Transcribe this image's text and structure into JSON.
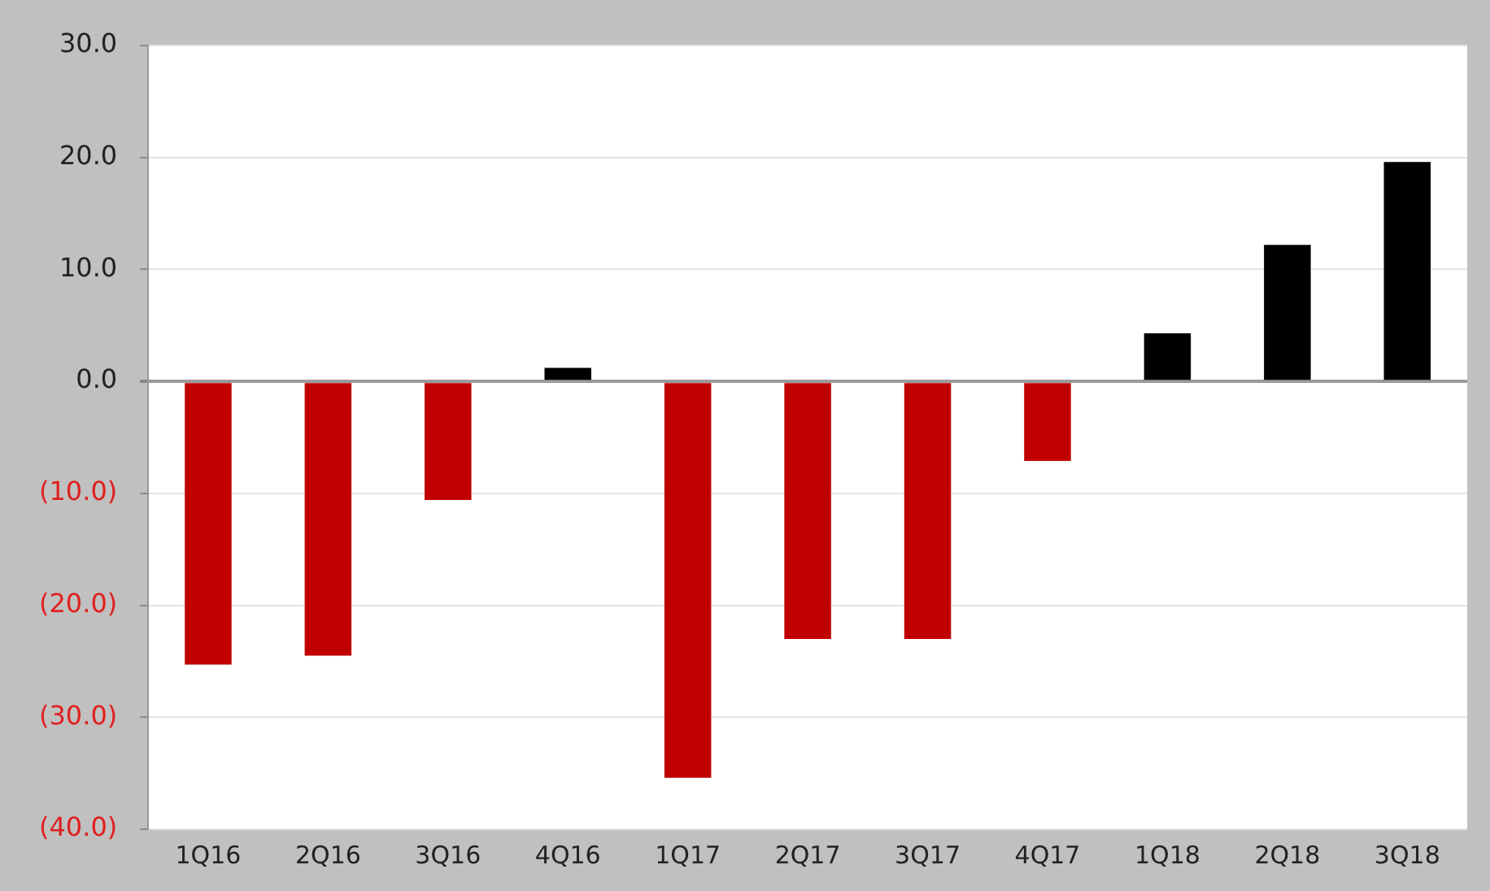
{
  "chart_data": {
    "type": "bar",
    "categories": [
      "1Q16",
      "2Q16",
      "3Q16",
      "4Q16",
      "1Q17",
      "2Q17",
      "3Q17",
      "4Q17",
      "1Q18",
      "2Q18",
      "3Q18"
    ],
    "values": [
      -25.3,
      -24.5,
      -10.6,
      1.2,
      -35.4,
      -23.0,
      -23.0,
      -7.1,
      4.3,
      12.2,
      19.6
    ],
    "colors": [
      "#c00000",
      "#c00000",
      "#c00000",
      "#000000",
      "#c00000",
      "#c00000",
      "#c00000",
      "#c00000",
      "#000000",
      "#000000",
      "#000000"
    ],
    "ylim": [
      -40,
      30
    ],
    "yticks": [
      {
        "value": -40,
        "label": "(40.0)"
      },
      {
        "value": -30,
        "label": "(30.0)"
      },
      {
        "value": -20,
        "label": "(20.0)"
      },
      {
        "value": -10,
        "label": "(10.0)"
      },
      {
        "value": 0,
        "label": "0.0"
      },
      {
        "value": 10,
        "label": "10.0"
      },
      {
        "value": 20,
        "label": "20.0"
      },
      {
        "value": 30,
        "label": "30.0"
      }
    ],
    "grid": "y",
    "legend": false
  }
}
